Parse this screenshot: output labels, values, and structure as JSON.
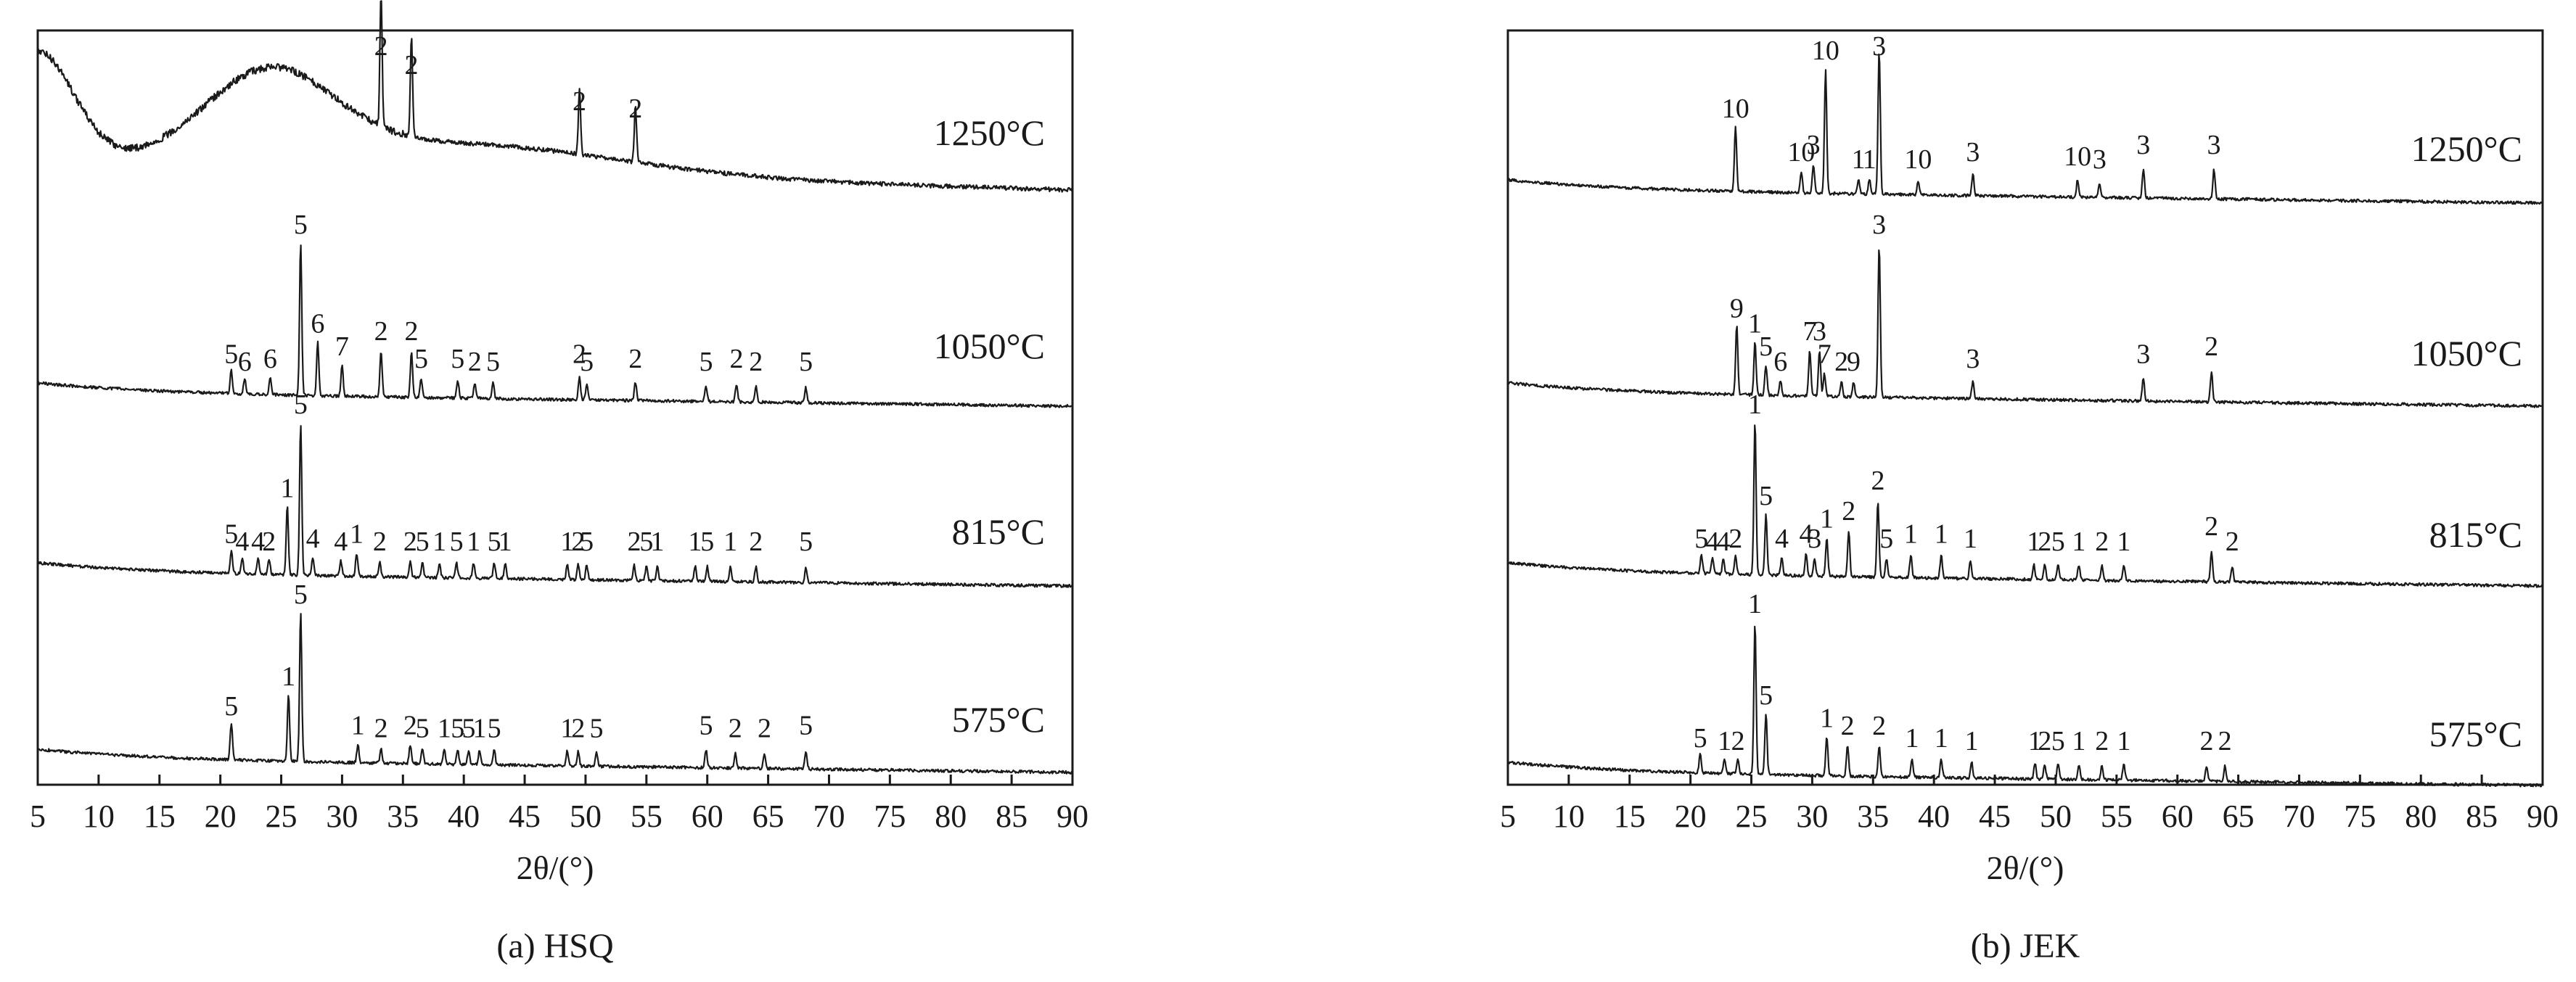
{
  "chart_data": [
    {
      "type": "line",
      "caption": "(a) HSQ",
      "xlabel": "2θ/(°)",
      "xlim": [
        5,
        90
      ],
      "xticks": [
        5,
        10,
        15,
        20,
        25,
        30,
        35,
        40,
        45,
        50,
        55,
        60,
        65,
        70,
        75,
        80,
        85,
        90
      ],
      "y_axis": "unlabeled stacked XRD intensity (arbitrary units)",
      "grid": false,
      "series": [
        {
          "name": "1250°C",
          "amorphous_hump": true,
          "peaks": [
            {
              "x": 33.2,
              "label": "2",
              "strength": 0.9
            },
            {
              "x": 35.7,
              "label": "2",
              "strength": 0.7
            },
            {
              "x": 49.5,
              "label": "2",
              "strength": 0.45
            },
            {
              "x": 54.1,
              "label": "2",
              "strength": 0.4
            }
          ]
        },
        {
          "name": "1050°C",
          "peaks": [
            {
              "x": 20.9,
              "label": "5",
              "strength": 0.15
            },
            {
              "x": 22.0,
              "label": "6",
              "strength": 0.1
            },
            {
              "x": 24.1,
              "label": "6",
              "strength": 0.12
            },
            {
              "x": 26.6,
              "label": "5",
              "strength": 1.0
            },
            {
              "x": 28.0,
              "label": "6",
              "strength": 0.35
            },
            {
              "x": 30.0,
              "label": "7",
              "strength": 0.2
            },
            {
              "x": 33.2,
              "label": "2",
              "strength": 0.3
            },
            {
              "x": 35.7,
              "label": "2",
              "strength": 0.3
            },
            {
              "x": 36.5,
              "label": "5",
              "strength": 0.12
            },
            {
              "x": 39.5,
              "label": "5",
              "strength": 0.12
            },
            {
              "x": 40.9,
              "label": "2",
              "strength": 0.1
            },
            {
              "x": 42.4,
              "label": "5",
              "strength": 0.1
            },
            {
              "x": 49.5,
              "label": "2",
              "strength": 0.15
            },
            {
              "x": 50.1,
              "label": "5",
              "strength": 0.1
            },
            {
              "x": 54.1,
              "label": "2",
              "strength": 0.12
            },
            {
              "x": 59.9,
              "label": "5",
              "strength": 0.1
            },
            {
              "x": 62.4,
              "label": "2",
              "strength": 0.12
            },
            {
              "x": 64.0,
              "label": "2",
              "strength": 0.1
            },
            {
              "x": 68.1,
              "label": "5",
              "strength": 0.1
            }
          ]
        },
        {
          "name": "815°C",
          "peaks": [
            {
              "x": 20.9,
              "label": "5",
              "strength": 0.15
            },
            {
              "x": 21.8,
              "label": "4",
              "strength": 0.1
            },
            {
              "x": 23.1,
              "label": "4",
              "strength": 0.1
            },
            {
              "x": 24.0,
              "label": "2",
              "strength": 0.1
            },
            {
              "x": 25.5,
              "label": "1",
              "strength": 0.45
            },
            {
              "x": 26.6,
              "label": "5",
              "strength": 1.0
            },
            {
              "x": 27.6,
              "label": "4",
              "strength": 0.12
            },
            {
              "x": 29.9,
              "label": "4",
              "strength": 0.1
            },
            {
              "x": 31.2,
              "label": "1",
              "strength": 0.15
            },
            {
              "x": 33.1,
              "label": "2",
              "strength": 0.1
            },
            {
              "x": 35.6,
              "label": "2",
              "strength": 0.1
            },
            {
              "x": 36.6,
              "label": "5",
              "strength": 0.1
            },
            {
              "x": 38.0,
              "label": "1",
              "strength": 0.1
            },
            {
              "x": 39.4,
              "label": "5",
              "strength": 0.1
            },
            {
              "x": 40.8,
              "label": "1",
              "strength": 0.1
            },
            {
              "x": 42.5,
              "label": "5",
              "strength": 0.1
            },
            {
              "x": 43.4,
              "label": "1",
              "strength": 0.1
            },
            {
              "x": 48.5,
              "label": "1",
              "strength": 0.1
            },
            {
              "x": 49.4,
              "label": "2",
              "strength": 0.1
            },
            {
              "x": 50.1,
              "label": "5",
              "strength": 0.1
            },
            {
              "x": 54.0,
              "label": "2",
              "strength": 0.1
            },
            {
              "x": 55.0,
              "label": "5",
              "strength": 0.1
            },
            {
              "x": 55.9,
              "label": "1",
              "strength": 0.1
            },
            {
              "x": 59.0,
              "label": "1",
              "strength": 0.1
            },
            {
              "x": 60.0,
              "label": "5",
              "strength": 0.1
            },
            {
              "x": 61.9,
              "label": "1",
              "strength": 0.1
            },
            {
              "x": 64.0,
              "label": "2",
              "strength": 0.1
            },
            {
              "x": 68.1,
              "label": "5",
              "strength": 0.1
            }
          ]
        },
        {
          "name": "575°C",
          "peaks": [
            {
              "x": 20.9,
              "label": "5",
              "strength": 0.25
            },
            {
              "x": 25.6,
              "label": "1",
              "strength": 0.45
            },
            {
              "x": 26.6,
              "label": "5",
              "strength": 1.0
            },
            {
              "x": 31.3,
              "label": "1",
              "strength": 0.12
            },
            {
              "x": 33.2,
              "label": "2",
              "strength": 0.1
            },
            {
              "x": 35.6,
              "label": "2",
              "strength": 0.12
            },
            {
              "x": 36.6,
              "label": "5",
              "strength": 0.1
            },
            {
              "x": 38.4,
              "label": "1",
              "strength": 0.1
            },
            {
              "x": 39.5,
              "label": "5",
              "strength": 0.1
            },
            {
              "x": 40.4,
              "label": "5",
              "strength": 0.1
            },
            {
              "x": 41.3,
              "label": "1",
              "strength": 0.1
            },
            {
              "x": 42.5,
              "label": "5",
              "strength": 0.1
            },
            {
              "x": 48.5,
              "label": "1",
              "strength": 0.1
            },
            {
              "x": 49.4,
              "label": "2",
              "strength": 0.1
            },
            {
              "x": 50.9,
              "label": "5",
              "strength": 0.1
            },
            {
              "x": 59.9,
              "label": "5",
              "strength": 0.12
            },
            {
              "x": 62.3,
              "label": "2",
              "strength": 0.1
            },
            {
              "x": 64.7,
              "label": "2",
              "strength": 0.1
            },
            {
              "x": 68.1,
              "label": "5",
              "strength": 0.12
            }
          ]
        }
      ]
    },
    {
      "type": "line",
      "caption": "(b) JEK",
      "xlabel": "2θ/(°)",
      "xlim": [
        5,
        90
      ],
      "xticks": [
        5,
        10,
        15,
        20,
        25,
        30,
        35,
        40,
        45,
        50,
        55,
        60,
        65,
        70,
        75,
        80,
        85,
        90
      ],
      "y_axis": "unlabeled stacked XRD intensity (arbitrary units)",
      "grid": false,
      "series": [
        {
          "name": "1250°C",
          "peaks": [
            {
              "x": 23.7,
              "label": "10",
              "strength": 0.45
            },
            {
              "x": 29.1,
              "label": "10",
              "strength": 0.15
            },
            {
              "x": 30.1,
              "label": "3",
              "strength": 0.2
            },
            {
              "x": 31.1,
              "label": "10",
              "strength": 0.85
            },
            {
              "x": 33.8,
              "label": "1",
              "strength": 0.1
            },
            {
              "x": 34.7,
              "label": "1",
              "strength": 0.1
            },
            {
              "x": 35.5,
              "label": "3",
              "strength": 1.0
            },
            {
              "x": 38.7,
              "label": "10",
              "strength": 0.1
            },
            {
              "x": 43.2,
              "label": "3",
              "strength": 0.15
            },
            {
              "x": 51.8,
              "label": "10",
              "strength": 0.12
            },
            {
              "x": 53.6,
              "label": "3",
              "strength": 0.1
            },
            {
              "x": 57.2,
              "label": "3",
              "strength": 0.2
            },
            {
              "x": 63.0,
              "label": "3",
              "strength": 0.2
            }
          ]
        },
        {
          "name": "1050°C",
          "peaks": [
            {
              "x": 23.8,
              "label": "9",
              "strength": 0.45
            },
            {
              "x": 25.3,
              "label": "1",
              "strength": 0.35
            },
            {
              "x": 26.2,
              "label": "5",
              "strength": 0.2
            },
            {
              "x": 27.4,
              "label": "6",
              "strength": 0.1
            },
            {
              "x": 29.8,
              "label": "7",
              "strength": 0.3
            },
            {
              "x": 30.6,
              "label": "3",
              "strength": 0.3
            },
            {
              "x": 31.0,
              "label": "7",
              "strength": 0.15
            },
            {
              "x": 32.4,
              "label": "2",
              "strength": 0.1
            },
            {
              "x": 33.4,
              "label": "9",
              "strength": 0.1
            },
            {
              "x": 35.5,
              "label": "3",
              "strength": 1.0
            },
            {
              "x": 43.2,
              "label": "3",
              "strength": 0.12
            },
            {
              "x": 57.2,
              "label": "3",
              "strength": 0.15
            },
            {
              "x": 62.8,
              "label": "2",
              "strength": 0.2
            }
          ]
        },
        {
          "name": "815°C",
          "peaks": [
            {
              "x": 20.9,
              "label": "5",
              "strength": 0.12
            },
            {
              "x": 21.8,
              "label": "4",
              "strength": 0.1
            },
            {
              "x": 22.7,
              "label": "4",
              "strength": 0.1
            },
            {
              "x": 23.7,
              "label": "2",
              "strength": 0.12
            },
            {
              "x": 25.3,
              "label": "1",
              "strength": 1.0
            },
            {
              "x": 26.2,
              "label": "5",
              "strength": 0.4
            },
            {
              "x": 27.5,
              "label": "4",
              "strength": 0.12
            },
            {
              "x": 29.5,
              "label": "4",
              "strength": 0.15
            },
            {
              "x": 30.2,
              "label": "3",
              "strength": 0.12
            },
            {
              "x": 31.2,
              "label": "1",
              "strength": 0.25
            },
            {
              "x": 33.0,
              "label": "2",
              "strength": 0.3
            },
            {
              "x": 35.4,
              "label": "2",
              "strength": 0.5
            },
            {
              "x": 36.1,
              "label": "5",
              "strength": 0.12
            },
            {
              "x": 38.1,
              "label": "1",
              "strength": 0.15
            },
            {
              "x": 40.6,
              "label": "1",
              "strength": 0.15
            },
            {
              "x": 43.0,
              "label": "1",
              "strength": 0.12
            },
            {
              "x": 48.2,
              "label": "1",
              "strength": 0.1
            },
            {
              "x": 49.1,
              "label": "2",
              "strength": 0.1
            },
            {
              "x": 50.2,
              "label": "5",
              "strength": 0.1
            },
            {
              "x": 51.9,
              "label": "1",
              "strength": 0.1
            },
            {
              "x": 53.8,
              "label": "2",
              "strength": 0.1
            },
            {
              "x": 55.6,
              "label": "1",
              "strength": 0.1
            },
            {
              "x": 62.8,
              "label": "2",
              "strength": 0.2
            },
            {
              "x": 64.5,
              "label": "2",
              "strength": 0.1
            }
          ]
        },
        {
          "name": "575°C",
          "peaks": [
            {
              "x": 20.8,
              "label": "5",
              "strength": 0.12
            },
            {
              "x": 22.8,
              "label": "1",
              "strength": 0.1
            },
            {
              "x": 23.9,
              "label": "2",
              "strength": 0.1
            },
            {
              "x": 25.3,
              "label": "1",
              "strength": 1.0
            },
            {
              "x": 26.2,
              "label": "5",
              "strength": 0.4
            },
            {
              "x": 31.2,
              "label": "1",
              "strength": 0.25
            },
            {
              "x": 32.9,
              "label": "2",
              "strength": 0.2
            },
            {
              "x": 35.5,
              "label": "2",
              "strength": 0.2
            },
            {
              "x": 38.2,
              "label": "1",
              "strength": 0.12
            },
            {
              "x": 40.6,
              "label": "1",
              "strength": 0.12
            },
            {
              "x": 43.1,
              "label": "1",
              "strength": 0.1
            },
            {
              "x": 48.3,
              "label": "1",
              "strength": 0.1
            },
            {
              "x": 49.1,
              "label": "2",
              "strength": 0.1
            },
            {
              "x": 50.2,
              "label": "5",
              "strength": 0.1
            },
            {
              "x": 51.9,
              "label": "1",
              "strength": 0.1
            },
            {
              "x": 53.8,
              "label": "2",
              "strength": 0.1
            },
            {
              "x": 55.6,
              "label": "1",
              "strength": 0.1
            },
            {
              "x": 62.4,
              "label": "2",
              "strength": 0.1
            },
            {
              "x": 63.9,
              "label": "2",
              "strength": 0.1
            }
          ]
        }
      ]
    }
  ]
}
